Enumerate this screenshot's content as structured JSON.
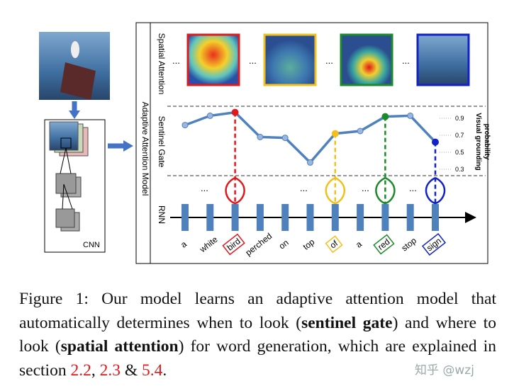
{
  "figure": {
    "labels": {
      "spatial": "Spatial Attention",
      "sentinel": "Sentinel Gate",
      "rnn": "RNN",
      "model": "Adaptive Attention Model",
      "cnn": "CNN",
      "ellipsis": "..."
    },
    "plot": {
      "y_label_1": "Visual  grounding",
      "y_label_2": "probability",
      "ylim": [
        0.2,
        1.0
      ],
      "yticks": [
        0.3,
        0.5,
        0.7,
        0.9
      ],
      "values": [
        0.82,
        0.93,
        0.97,
        0.68,
        0.67,
        0.38,
        0.72,
        0.75,
        0.92,
        0.93,
        0.62
      ]
    },
    "words": [
      {
        "text": "a"
      },
      {
        "text": "white"
      },
      {
        "text": "bird",
        "color": "#e0191d"
      },
      {
        "text": "perched"
      },
      {
        "text": "on"
      },
      {
        "text": "top"
      },
      {
        "text": "of",
        "color": "#f2c01c"
      },
      {
        "text": "a"
      },
      {
        "text": "red",
        "color": "#1c8a2a"
      },
      {
        "text": "stop"
      },
      {
        "text": "sign",
        "color": "#1022c8"
      }
    ]
  },
  "caption": {
    "runs": [
      "Figure 1:  Our model learns an adaptive attention model that automatically determines when to look (",
      "sentinel gate",
      ") and where to look (",
      "spatial attention",
      ") for word generation, which are explained in section ",
      "2.2",
      ", ",
      "2.3",
      " & ",
      "5.4",
      "."
    ]
  },
  "watermark": "知乎 @wzj"
}
